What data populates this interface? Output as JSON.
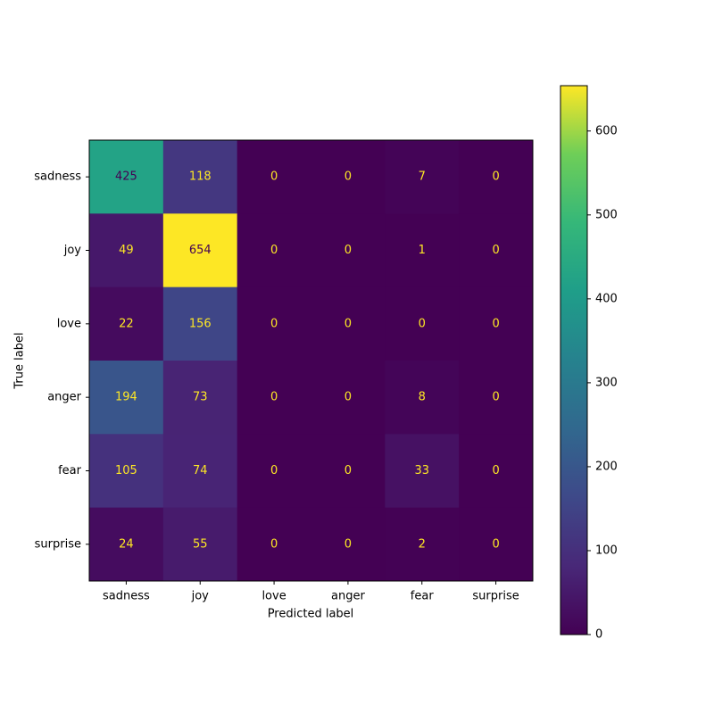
{
  "chart_data": {
    "type": "heatmap",
    "x_label": "Predicted label",
    "y_label": "True label",
    "x_categories": [
      "sadness",
      "joy",
      "love",
      "anger",
      "fear",
      "surprise"
    ],
    "y_categories": [
      "sadness",
      "joy",
      "love",
      "anger",
      "fear",
      "surprise"
    ],
    "values": [
      [
        425,
        118,
        0,
        0,
        7,
        0
      ],
      [
        49,
        654,
        0,
        0,
        1,
        0
      ],
      [
        22,
        156,
        0,
        0,
        0,
        0
      ],
      [
        194,
        73,
        0,
        0,
        8,
        0
      ],
      [
        105,
        74,
        0,
        0,
        33,
        0
      ],
      [
        24,
        55,
        0,
        0,
        2,
        0
      ]
    ],
    "colormap": "viridis",
    "colorbar_lim": [
      0,
      654
    ],
    "colorbar_ticks": [
      0,
      100,
      200,
      300,
      400,
      500,
      600
    ]
  }
}
